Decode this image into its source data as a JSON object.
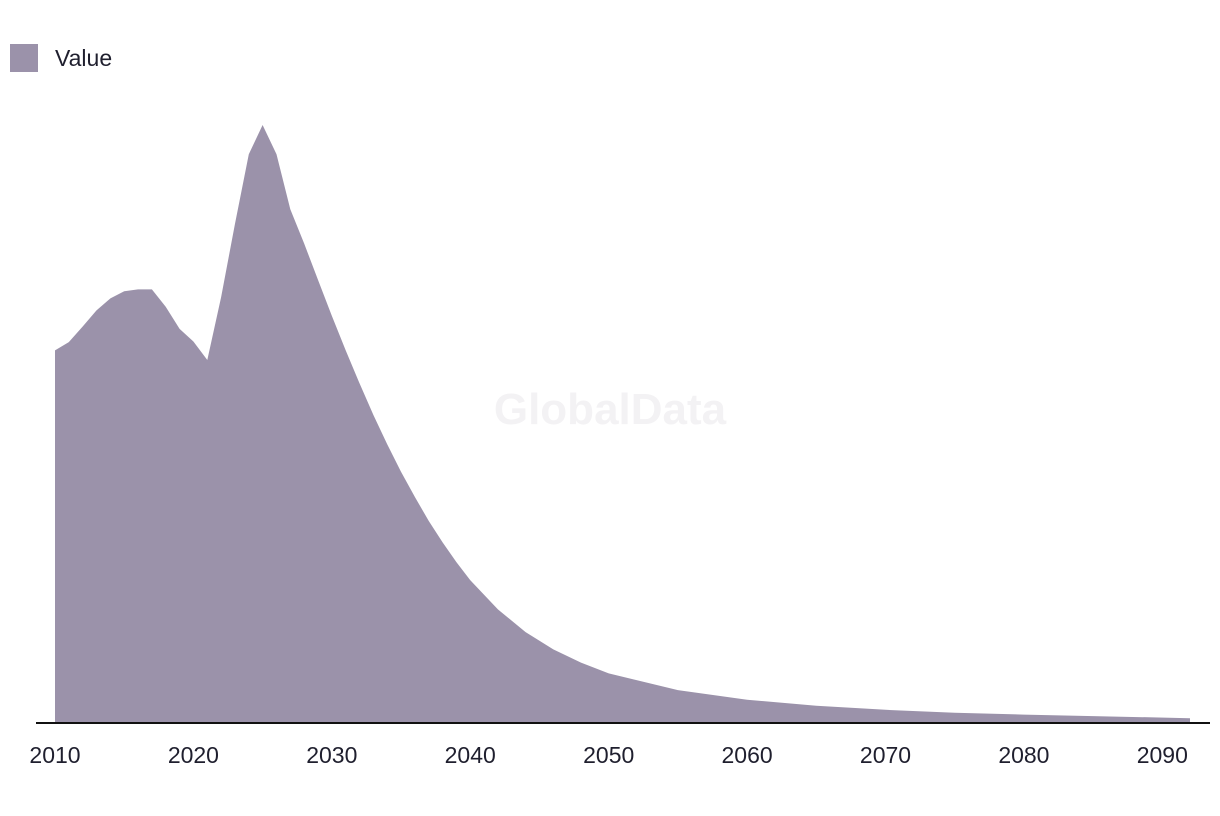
{
  "chart_data": {
    "type": "area",
    "legend": {
      "label": "Value",
      "position": "top-left"
    },
    "watermark": "GlobalData",
    "color": "#9b92aa",
    "axis_color": "#111111",
    "x_ticks": [
      2010,
      2020,
      2030,
      2040,
      2050,
      2060,
      2070,
      2080,
      2090
    ],
    "xlim": [
      2010,
      2092
    ],
    "ylim": [
      0,
      100
    ],
    "grid": false,
    "series": [
      {
        "name": "Value",
        "x": [
          2010,
          2011,
          2012,
          2013,
          2014,
          2015,
          2016,
          2017,
          2018,
          2019,
          2020,
          2021,
          2022,
          2023,
          2024,
          2025,
          2026,
          2027,
          2028,
          2029,
          2030,
          2031,
          2032,
          2033,
          2034,
          2035,
          2036,
          2037,
          2038,
          2039,
          2040,
          2042,
          2044,
          2046,
          2048,
          2050,
          2055,
          2060,
          2065,
          2070,
          2075,
          2080,
          2085,
          2092
        ],
        "values": [
          62.3,
          63.7,
          66.3,
          69.0,
          71.0,
          72.2,
          72.5,
          72.5,
          69.6,
          65.9,
          63.8,
          60.7,
          71.2,
          83.4,
          95.1,
          100.0,
          95.1,
          85.9,
          80.2,
          74.1,
          68.1,
          62.3,
          56.8,
          51.5,
          46.6,
          42.0,
          37.8,
          33.8,
          30.2,
          26.9,
          23.9,
          19.0,
          15.2,
          12.3,
          10.1,
          8.3,
          5.5,
          3.9,
          2.9,
          2.2,
          1.7,
          1.4,
          1.15,
          0.8
        ]
      }
    ]
  }
}
